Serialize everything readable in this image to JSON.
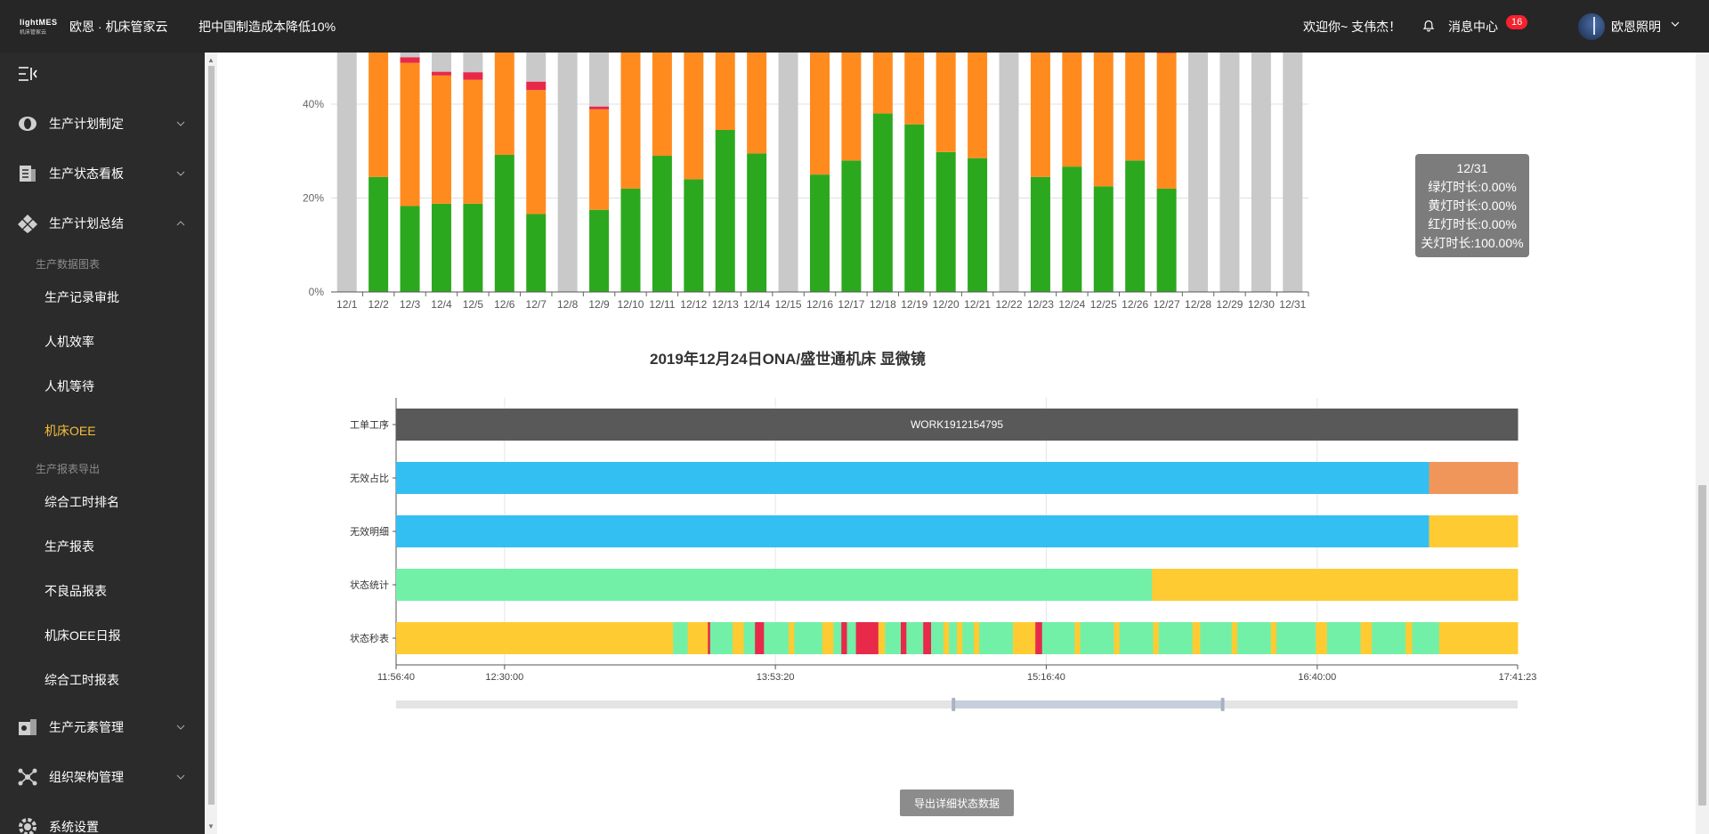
{
  "header": {
    "logo_text": "lightMES",
    "logo_sub": "机床管家云",
    "app_title": "欧恩 · 机床管家云",
    "slogan": "把中国制造成本降低10%",
    "welcome": "欢迎你~ 支伟杰！",
    "messages_label": "消息中心",
    "messages_count": "16",
    "user_name": "欧恩照明"
  },
  "sidebar": {
    "menus": [
      {
        "label": "生产计划制定",
        "icon": "plan-icon"
      },
      {
        "label": "生产状态看板",
        "icon": "dashboard-icon"
      },
      {
        "label": "生产计划总结",
        "icon": "summary-icon"
      }
    ],
    "group1": "生产数据图表",
    "group1_items": [
      "生产记录审批",
      "人机效率",
      "人机等待",
      "机床OEE"
    ],
    "group2": "生产报表导出",
    "group2_items": [
      "综合工时排名",
      "生产报表",
      "不良品报表",
      "机床OEE日报",
      "综合工时报表"
    ],
    "bottom_menus": [
      {
        "label": "生产元素管理",
        "icon": "elements-icon"
      },
      {
        "label": "组织架构管理",
        "icon": "org-icon"
      },
      {
        "label": "系统设置",
        "icon": "settings-icon"
      }
    ]
  },
  "colors": {
    "green": "#2ca81e",
    "orange": "#ff8b1f",
    "red": "#e8294a",
    "gray": "#c9c9c9",
    "blue": "#33bff2",
    "mint": "#72f0a8",
    "yellow": "#ffcb33",
    "salmon": "#f0965a",
    "dark": "#595959"
  },
  "chart_data": [
    {
      "type": "bar",
      "stacked": true,
      "title": "",
      "xlabel": "",
      "ylabel": "",
      "y_unit": "%",
      "yticks": [
        "0%",
        "20%",
        "40%"
      ],
      "ylim": [
        0,
        100
      ],
      "categories": [
        "12/1",
        "12/2",
        "12/3",
        "12/4",
        "12/5",
        "12/6",
        "12/7",
        "12/8",
        "12/9",
        "12/10",
        "12/11",
        "12/12",
        "12/13",
        "12/14",
        "12/15",
        "12/16",
        "12/17",
        "12/18",
        "12/19",
        "12/20",
        "12/21",
        "12/22",
        "12/23",
        "12/24",
        "12/25",
        "12/26",
        "12/27",
        "12/28",
        "12/29",
        "12/30",
        "12/31"
      ],
      "series": [
        {
          "key": "green",
          "values": [
            0,
            24.5,
            18.3,
            18.8,
            18.8,
            29.2,
            16.6,
            0,
            17.5,
            22,
            29,
            24,
            34.5,
            29.5,
            0,
            25,
            28,
            38,
            35.7,
            29.8,
            28.5,
            0,
            24.5,
            26.7,
            22.5,
            28,
            22,
            0,
            0,
            0,
            0
          ]
        },
        {
          "key": "orange",
          "values": [
            0,
            31,
            30.5,
            27.3,
            26.4,
            27.6,
            26.4,
            0,
            21.4,
            34.3,
            25.6,
            30.6,
            20.3,
            25.5,
            0,
            30.6,
            26,
            18.7,
            15.5,
            27.9,
            27.5,
            0,
            33.1,
            29.4,
            33.2,
            28.4,
            28.9,
            0,
            0,
            0,
            0
          ]
        },
        {
          "key": "red",
          "values": [
            0,
            2.1,
            1.2,
            0.8,
            1.6,
            0.2,
            1.8,
            0,
            0.6,
            1.8,
            2.6,
            2.6,
            2.2,
            1.8,
            0,
            2,
            2.5,
            1.1,
            2.8,
            1,
            1,
            0,
            0.5,
            2,
            1.3,
            1.9,
            1.4,
            0,
            0,
            0,
            0
          ]
        },
        {
          "key": "gray",
          "values": [
            100,
            42.4,
            50,
            53.1,
            53.2,
            43,
            55.2,
            100,
            60.5,
            41.9,
            42.8,
            42.8,
            43,
            43.2,
            100,
            42.4,
            43.5,
            42.2,
            46,
            41.3,
            43,
            100,
            41.9,
            41.9,
            43,
            41.7,
            47.7,
            100,
            100,
            100,
            100
          ]
        }
      ],
      "tooltip": {
        "title": "12/31",
        "lines": [
          "绿灯时长:0.00%",
          "黄灯时长:0.00%",
          "红灯时长:0.00%",
          "关灯时长:100.00%"
        ]
      }
    },
    {
      "type": "gantt",
      "title": "2019年12月24日ONA/盛世通机床 显微镜",
      "rows": [
        "工单工序",
        "无效占比",
        "无效明细",
        "状态统计",
        "状态秒表"
      ],
      "time_ticks": [
        "11:56:40",
        "12:30:00",
        "13:53:20",
        "15:16:40",
        "16:40:00",
        "17:41:23"
      ],
      "time_range": [
        "11:56:40",
        "17:41:23"
      ],
      "work_order": "WORK1912154795",
      "segments": {
        "工单工序": [
          {
            "from": 0,
            "to": 1,
            "color": "dark"
          }
        ],
        "无效占比": [
          {
            "from": 0,
            "to": 0.921,
            "color": "blue"
          },
          {
            "from": 0.921,
            "to": 1,
            "color": "salmon"
          }
        ],
        "无效明细": [
          {
            "from": 0,
            "to": 0.921,
            "color": "blue"
          },
          {
            "from": 0.921,
            "to": 1,
            "color": "yellow"
          }
        ],
        "状态统计": [
          {
            "from": 0,
            "to": 0.674,
            "color": "mint"
          },
          {
            "from": 0.674,
            "to": 1,
            "color": "yellow"
          }
        ],
        "状态秒表": [
          {
            "from": 0,
            "to": 0.247,
            "color": "yellow"
          },
          {
            "from": 0.247,
            "to": 0.26,
            "color": "mint"
          },
          {
            "from": 0.26,
            "to": 0.278,
            "color": "yellow"
          },
          {
            "from": 0.278,
            "to": 0.28,
            "color": "red"
          },
          {
            "from": 0.28,
            "to": 0.3,
            "color": "mint"
          },
          {
            "from": 0.3,
            "to": 0.31,
            "color": "yellow"
          },
          {
            "from": 0.31,
            "to": 0.32,
            "color": "mint"
          },
          {
            "from": 0.32,
            "to": 0.328,
            "color": "red"
          },
          {
            "from": 0.328,
            "to": 0.35,
            "color": "mint"
          },
          {
            "from": 0.35,
            "to": 0.355,
            "color": "yellow"
          },
          {
            "from": 0.355,
            "to": 0.38,
            "color": "mint"
          },
          {
            "from": 0.38,
            "to": 0.39,
            "color": "yellow"
          },
          {
            "from": 0.39,
            "to": 0.397,
            "color": "mint"
          },
          {
            "from": 0.397,
            "to": 0.402,
            "color": "red"
          },
          {
            "from": 0.402,
            "to": 0.41,
            "color": "mint"
          },
          {
            "from": 0.41,
            "to": 0.43,
            "color": "red"
          },
          {
            "from": 0.43,
            "to": 0.436,
            "color": "yellow"
          },
          {
            "from": 0.436,
            "to": 0.45,
            "color": "mint"
          },
          {
            "from": 0.45,
            "to": 0.455,
            "color": "red"
          },
          {
            "from": 0.455,
            "to": 0.47,
            "color": "mint"
          },
          {
            "from": 0.47,
            "to": 0.477,
            "color": "red"
          },
          {
            "from": 0.477,
            "to": 0.488,
            "color": "mint"
          },
          {
            "from": 0.488,
            "to": 0.493,
            "color": "yellow"
          },
          {
            "from": 0.493,
            "to": 0.5,
            "color": "mint"
          },
          {
            "from": 0.5,
            "to": 0.505,
            "color": "yellow"
          },
          {
            "from": 0.505,
            "to": 0.515,
            "color": "mint"
          },
          {
            "from": 0.515,
            "to": 0.52,
            "color": "yellow"
          },
          {
            "from": 0.52,
            "to": 0.55,
            "color": "mint"
          },
          {
            "from": 0.55,
            "to": 0.57,
            "color": "yellow"
          },
          {
            "from": 0.57,
            "to": 0.576,
            "color": "red"
          },
          {
            "from": 0.576,
            "to": 0.605,
            "color": "mint"
          },
          {
            "from": 0.605,
            "to": 0.61,
            "color": "yellow"
          },
          {
            "from": 0.61,
            "to": 0.64,
            "color": "mint"
          },
          {
            "from": 0.64,
            "to": 0.645,
            "color": "yellow"
          },
          {
            "from": 0.645,
            "to": 0.675,
            "color": "mint"
          },
          {
            "from": 0.675,
            "to": 0.68,
            "color": "yellow"
          },
          {
            "from": 0.68,
            "to": 0.71,
            "color": "mint"
          },
          {
            "from": 0.71,
            "to": 0.717,
            "color": "yellow"
          },
          {
            "from": 0.717,
            "to": 0.745,
            "color": "mint"
          },
          {
            "from": 0.745,
            "to": 0.75,
            "color": "yellow"
          },
          {
            "from": 0.75,
            "to": 0.78,
            "color": "mint"
          },
          {
            "from": 0.78,
            "to": 0.785,
            "color": "yellow"
          },
          {
            "from": 0.785,
            "to": 0.82,
            "color": "mint"
          },
          {
            "from": 0.82,
            "to": 0.83,
            "color": "yellow"
          },
          {
            "from": 0.83,
            "to": 0.86,
            "color": "mint"
          },
          {
            "from": 0.86,
            "to": 0.87,
            "color": "yellow"
          },
          {
            "from": 0.87,
            "to": 0.9,
            "color": "mint"
          },
          {
            "from": 0.9,
            "to": 0.906,
            "color": "yellow"
          },
          {
            "from": 0.906,
            "to": 0.93,
            "color": "mint"
          },
          {
            "from": 0.93,
            "to": 1,
            "color": "yellow"
          }
        ]
      },
      "zoom_window": [
        0.497,
        0.737
      ]
    }
  ],
  "export_button": "导出详细状态数据"
}
